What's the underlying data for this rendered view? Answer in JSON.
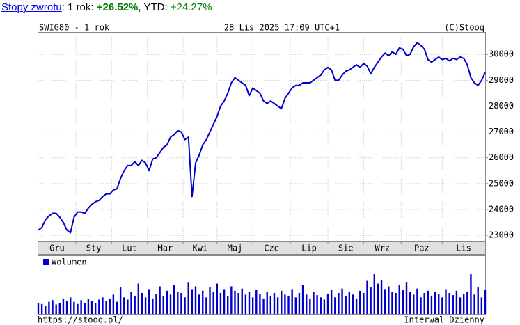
{
  "header": {
    "link": "Stopy zwrotu",
    "period_label": ": 1 rok: ",
    "period_return": "+26.52%",
    "ytd_label": ", YTD: ",
    "ytd_return": "+24.27%"
  },
  "chart_data": {
    "type": "line",
    "title": "SWIG80 - 1 rok",
    "subtitle": "28 Lis 2025 17:09 UTC+1",
    "credit": "(C)Stooq",
    "color": "#0000cc",
    "x": [
      0,
      2,
      4,
      6,
      8,
      10,
      12,
      14,
      16,
      18,
      20,
      22,
      24,
      26,
      28,
      30,
      32,
      34,
      36,
      38,
      40,
      42,
      44,
      46,
      48,
      50,
      52,
      54,
      56,
      58,
      60,
      62,
      64,
      66,
      68,
      70,
      72,
      74,
      76,
      78,
      80,
      82,
      84,
      86,
      88,
      90,
      92,
      94,
      96,
      98,
      100,
      102,
      104,
      106,
      108,
      110,
      112,
      114,
      116,
      118,
      120,
      122,
      124,
      126,
      128,
      130,
      132,
      134,
      136,
      138,
      140,
      142,
      144,
      146,
      148,
      150,
      152,
      154,
      156,
      158,
      160,
      162,
      164,
      166,
      168,
      170,
      172,
      174,
      176,
      178,
      180,
      182,
      184,
      186,
      188,
      190,
      192,
      194,
      196,
      198,
      200,
      202,
      204,
      206,
      208,
      210,
      212,
      214,
      216,
      218,
      220,
      222,
      224,
      226,
      228,
      230,
      232,
      234,
      236,
      238,
      240,
      242,
      244,
      246,
      248,
      250
    ],
    "values": [
      23200,
      23300,
      23600,
      23750,
      23850,
      23850,
      23700,
      23500,
      23200,
      23100,
      23700,
      23900,
      23900,
      23850,
      24050,
      24200,
      24300,
      24350,
      24500,
      24600,
      24600,
      24750,
      24800,
      25200,
      25500,
      25700,
      25700,
      25850,
      25700,
      25900,
      25800,
      25500,
      25950,
      26000,
      26200,
      26400,
      26500,
      26800,
      26900,
      27050,
      27000,
      26700,
      26800,
      24500,
      25800,
      26100,
      26500,
      26700,
      27000,
      27300,
      27600,
      28000,
      28200,
      28500,
      28900,
      29100,
      29000,
      28900,
      28800,
      28400,
      28700,
      28600,
      28500,
      28200,
      28100,
      28200,
      28100,
      28000,
      27900,
      28300,
      28500,
      28700,
      28800,
      28800,
      28900,
      28900,
      28900,
      29000,
      29100,
      29200,
      29400,
      29500,
      29400,
      29000,
      29000,
      29200,
      29350,
      29400,
      29500,
      29600,
      29500,
      29650,
      29550,
      29250,
      29500,
      29700,
      29900,
      30050,
      29950,
      30100,
      30000,
      30250,
      30200,
      29950,
      30000,
      30300,
      30450,
      30350,
      30200,
      29800,
      29700,
      29800,
      29900,
      29800,
      29850,
      29750,
      29850,
      29800,
      29900,
      29850,
      29600,
      29100,
      28900,
      28800,
      29000,
      29300
    ],
    "xlim": [
      0,
      250
    ],
    "months": [
      "Gru",
      "Sty",
      "Lut",
      "Mar",
      "Kwi",
      "Maj",
      "Cze",
      "Lip",
      "Sie",
      "Wrz",
      "Paz",
      "Lis"
    ],
    "month_starts": [
      21,
      41,
      61,
      81,
      100,
      120,
      141,
      162,
      182,
      203,
      226
    ],
    "ylim": [
      22760,
      30840
    ],
    "yticks": [
      23000,
      24000,
      25000,
      26000,
      27000,
      28000,
      29000,
      30000
    ],
    "grid": true,
    "volume": {
      "name": "Wolumen",
      "color": "#0000cc",
      "lim": [
        0,
        100
      ],
      "values": [
        20,
        18,
        15,
        22,
        25,
        17,
        20,
        28,
        24,
        30,
        22,
        18,
        25,
        20,
        27,
        23,
        19,
        26,
        30,
        24,
        28,
        35,
        22,
        48,
        30,
        26,
        40,
        33,
        55,
        38,
        30,
        45,
        28,
        36,
        50,
        32,
        42,
        35,
        52,
        40,
        38,
        30,
        58,
        45,
        50,
        35,
        42,
        30,
        48,
        40,
        55,
        38,
        45,
        32,
        50,
        42,
        38,
        46,
        35,
        40,
        30,
        44,
        36,
        28,
        40,
        33,
        38,
        30,
        42,
        35,
        32,
        45,
        30,
        38,
        52,
        35,
        28,
        40,
        34,
        30,
        26,
        36,
        44,
        30,
        38,
        46,
        33,
        40,
        35,
        28,
        42,
        38,
        60,
        48,
        72,
        55,
        62,
        45,
        50,
        40,
        38,
        52,
        44,
        58,
        40,
        35,
        46,
        30,
        38,
        42,
        33,
        40,
        36,
        30,
        45,
        38,
        34,
        42,
        30,
        36,
        40,
        72,
        35,
        48,
        30,
        44
      ]
    }
  },
  "footer": {
    "url": "https://stooq.pl/",
    "interval": "Interwal Dzienny"
  }
}
